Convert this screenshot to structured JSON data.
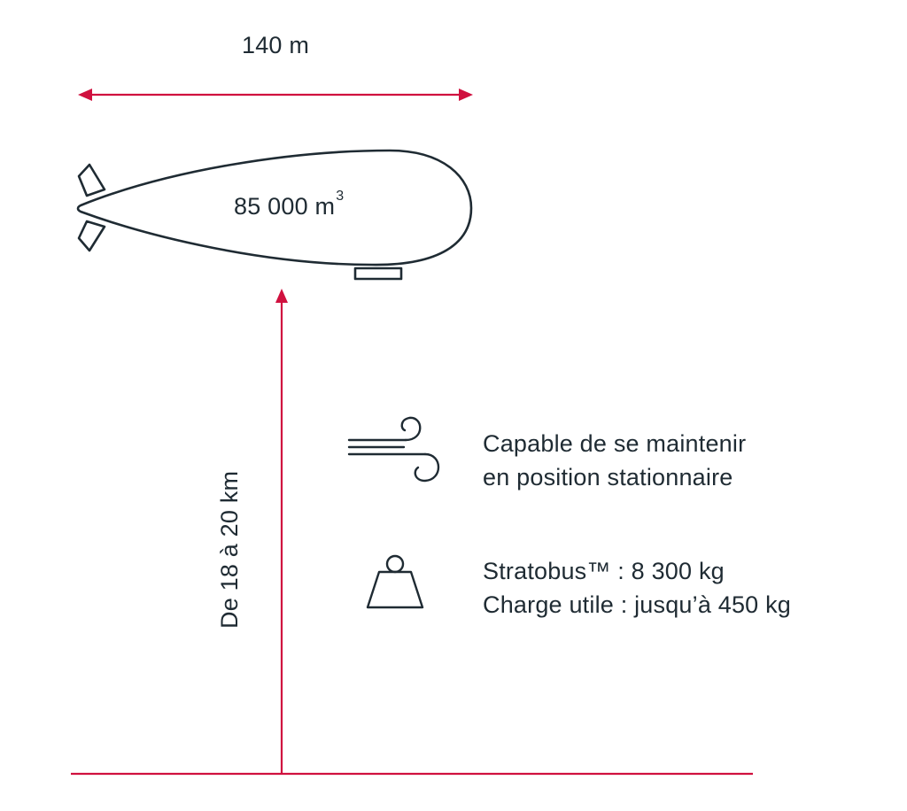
{
  "dimensions": {
    "length_label": "140 m",
    "volume_value": "85 000 m",
    "volume_exponent": "3",
    "altitude_label": "De 18 à 20 km"
  },
  "features": [
    {
      "icon": "wind-icon",
      "lines": [
        "Capable de se maintenir",
        "en position stationnaire"
      ]
    },
    {
      "icon": "weight-icon",
      "lines": [
        "Stratobus™ : 8 300 kg",
        "Charge utile : jusqu’à 450 kg"
      ]
    }
  ],
  "colors": {
    "accent": "#d0113f",
    "ink": "#1f2b33"
  }
}
